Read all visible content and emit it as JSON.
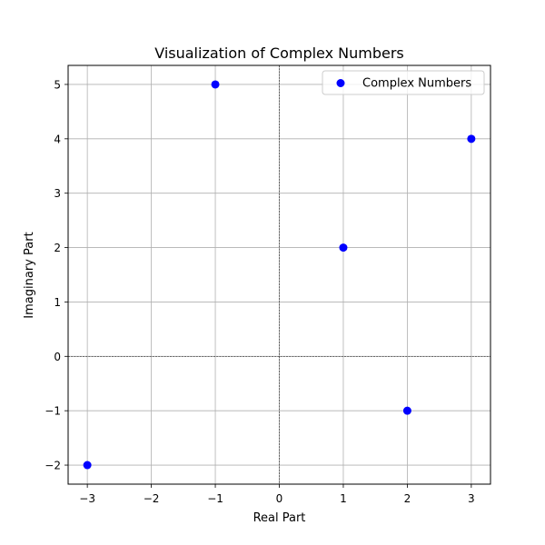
{
  "chart_data": {
    "type": "scatter",
    "title": "Visualization of Complex Numbers",
    "xlabel": "Real Part",
    "ylabel": "Imaginary Part",
    "xlim": [
      -3.3,
      3.3
    ],
    "ylim": [
      -2.35,
      5.35
    ],
    "xticks": [
      -3,
      -2,
      -1,
      0,
      1,
      2,
      3
    ],
    "yticks": [
      -2,
      -1,
      0,
      1,
      2,
      3,
      4,
      5
    ],
    "xtick_labels": [
      "−3",
      "−2",
      "−1",
      "0",
      "1",
      "2",
      "3"
    ],
    "ytick_labels": [
      "−2",
      "−1",
      "0",
      "1",
      "2",
      "3",
      "4",
      "5"
    ],
    "grid": true,
    "zero_lines": true,
    "legend_position": "top-right",
    "series": [
      {
        "name": "Complex Numbers",
        "color": "#0000ff",
        "points": [
          {
            "x": -1,
            "y": 5
          },
          {
            "x": 3,
            "y": 4
          },
          {
            "x": 1,
            "y": 2
          },
          {
            "x": 2,
            "y": -1
          },
          {
            "x": -3,
            "y": -2
          }
        ]
      }
    ]
  }
}
